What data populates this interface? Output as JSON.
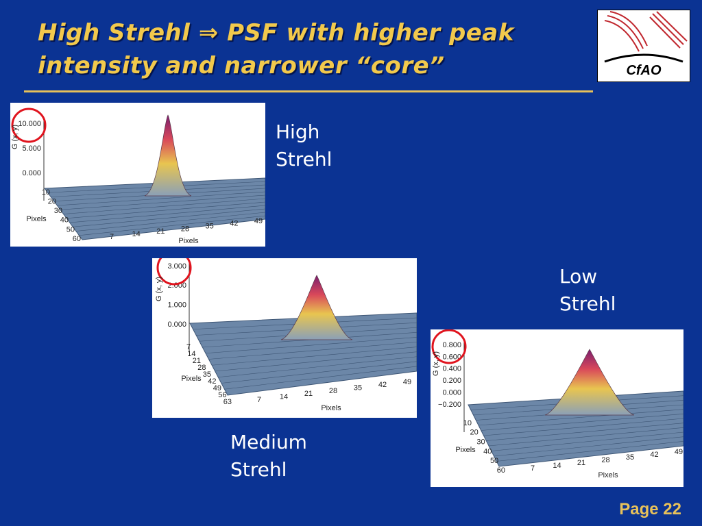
{
  "header": {
    "title_lines": [
      "High Strehl  ⇒  PSF with higher peak",
      "intensity and narrower “core”"
    ],
    "logo_text": "CfAO"
  },
  "panels": [
    {
      "label_lines": [
        "High",
        "Strehl"
      ],
      "z_axis_label": "G (x, y)",
      "z_ticks": [
        "10.000",
        "5.000",
        "0.000"
      ],
      "depth_ticks": [
        "10",
        "20",
        "30",
        "40",
        "50",
        "60"
      ],
      "width_ticks": [
        "7",
        "14",
        "21",
        "28",
        "35",
        "42",
        "49"
      ],
      "depth_axis_label": "Pixels",
      "width_axis_label": "Pixels"
    },
    {
      "label_lines": [
        "Medium",
        "Strehl"
      ],
      "z_axis_label": "G (x, y)",
      "z_ticks": [
        "3.000",
        "2.000",
        "1.000",
        "0.000"
      ],
      "depth_ticks": [
        "7",
        "14",
        "21",
        "28",
        "35",
        "42",
        "49",
        "56",
        "63"
      ],
      "width_ticks": [
        "7",
        "14",
        "21",
        "28",
        "35",
        "42",
        "49"
      ],
      "depth_axis_label": "Pixels",
      "width_axis_label": "Pixels"
    },
    {
      "label_lines": [
        "Low",
        "Strehl"
      ],
      "z_axis_label": "G (x, y)",
      "z_ticks": [
        "0.800",
        "0.600",
        "0.400",
        "0.200",
        "0.000",
        "−0.200"
      ],
      "depth_ticks": [
        "10",
        "20",
        "30",
        "40",
        "50",
        "60"
      ],
      "width_ticks": [
        "7",
        "14",
        "21",
        "28",
        "35",
        "42",
        "49"
      ],
      "depth_axis_label": "Pixels",
      "width_axis_label": "Pixels"
    }
  ],
  "footer": {
    "page": "Page 22"
  }
}
